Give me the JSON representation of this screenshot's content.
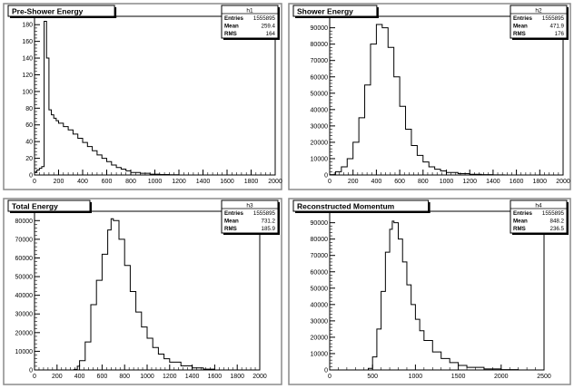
{
  "chart_data": [
    {
      "type": "bar",
      "title": "Pre-Shower Energy",
      "stats": {
        "name": "h1",
        "entries_label": "Entries",
        "entries": "1555895",
        "mean_label": "Mean",
        "mean": "259.4",
        "rms_label": "RMS",
        "rms": "164"
      },
      "y_multiplier_label": "×10",
      "xlim": [
        0,
        2000
      ],
      "ylim": [
        0,
        190
      ],
      "x_ticks": [
        0,
        200,
        400,
        600,
        800,
        1000,
        1200,
        1400,
        1600,
        1800,
        2000
      ],
      "y_ticks": [
        0,
        20,
        40,
        60,
        80,
        100,
        120,
        140,
        160,
        180
      ],
      "x": [
        0,
        20,
        40,
        60,
        80,
        100,
        120,
        140,
        160,
        180,
        200,
        240,
        280,
        320,
        360,
        400,
        440,
        480,
        520,
        560,
        600,
        640,
        680,
        720,
        760,
        800,
        880,
        960,
        1040,
        1120,
        1200
      ],
      "values": [
        3,
        6,
        8,
        10,
        184,
        140,
        78,
        72,
        68,
        65,
        62,
        58,
        54,
        49,
        44,
        39,
        34,
        29,
        24,
        20,
        16,
        12,
        9,
        7,
        5,
        3,
        2,
        1,
        0.6,
        0.3,
        0
      ],
      "grid": false
    },
    {
      "type": "bar",
      "title": "Shower Energy",
      "stats": {
        "name": "h2",
        "entries_label": "Entries",
        "entries": "1555895",
        "mean_label": "Mean",
        "mean": "471.9",
        "rms_label": "RMS",
        "rms": "176"
      },
      "xlim": [
        0,
        2000
      ],
      "ylim": [
        0,
        97000
      ],
      "x_ticks": [
        0,
        200,
        400,
        600,
        800,
        1000,
        1200,
        1400,
        1600,
        1800,
        2000
      ],
      "y_ticks": [
        0,
        10000,
        20000,
        30000,
        40000,
        50000,
        60000,
        70000,
        80000,
        90000
      ],
      "x": [
        0,
        50,
        100,
        150,
        200,
        250,
        300,
        350,
        400,
        425,
        450,
        500,
        550,
        600,
        650,
        700,
        750,
        800,
        850,
        900,
        950,
        1000,
        1100,
        1200,
        1300,
        1400,
        1500
      ],
      "values": [
        200,
        2000,
        5000,
        10000,
        20000,
        35000,
        55000,
        80000,
        92000,
        92000,
        90000,
        78000,
        60000,
        42000,
        28000,
        18000,
        12000,
        8000,
        5000,
        3500,
        2500,
        1500,
        800,
        400,
        200,
        100,
        0
      ],
      "grid": false
    },
    {
      "type": "bar",
      "title": "Total Energy",
      "stats": {
        "name": "h3",
        "entries_label": "Entries",
        "entries": "1555895",
        "mean_label": "Mean",
        "mean": "731.2",
        "rms_label": "RMS",
        "rms": "185.9"
      },
      "xlim": [
        0,
        2000
      ],
      "ylim": [
        0,
        85000
      ],
      "x_ticks": [
        0,
        200,
        400,
        600,
        800,
        1000,
        1200,
        1400,
        1600,
        1800,
        2000
      ],
      "y_ticks": [
        0,
        10000,
        20000,
        30000,
        40000,
        50000,
        60000,
        70000,
        80000
      ],
      "x": [
        300,
        350,
        380,
        400,
        450,
        500,
        550,
        600,
        650,
        680,
        700,
        750,
        800,
        850,
        900,
        950,
        1000,
        1050,
        1100,
        1150,
        1200,
        1300,
        1400,
        1500,
        1600
      ],
      "values": [
        0,
        300,
        2000,
        5000,
        15000,
        35000,
        48000,
        62000,
        75000,
        81000,
        80000,
        70000,
        56000,
        42000,
        31000,
        23000,
        17000,
        12000,
        8500,
        6000,
        4200,
        2200,
        1100,
        400,
        0
      ],
      "grid": false
    },
    {
      "type": "bar",
      "title": "Reconstructed Momentum",
      "stats": {
        "name": "h4",
        "entries_label": "Entries",
        "entries": "1555895",
        "mean_label": "Mean",
        "mean": "848.2",
        "rms_label": "RMS",
        "rms": "236.5"
      },
      "xlim": [
        0,
        2500
      ],
      "ylim": [
        0,
        97000
      ],
      "x_ticks": [
        0,
        500,
        1000,
        1500,
        2000,
        2500
      ],
      "y_ticks": [
        0,
        10000,
        20000,
        30000,
        40000,
        50000,
        60000,
        70000,
        80000,
        90000
      ],
      "x": [
        400,
        450,
        500,
        550,
        600,
        650,
        700,
        730,
        750,
        800,
        850,
        900,
        950,
        1000,
        1050,
        1100,
        1200,
        1300,
        1400,
        1500,
        1600,
        1800,
        2000,
        2200
      ],
      "values": [
        0,
        1000,
        8000,
        25000,
        48000,
        72000,
        86000,
        91000,
        90000,
        80000,
        66000,
        52000,
        40000,
        31000,
        24000,
        18000,
        11000,
        7000,
        4500,
        2800,
        1600,
        600,
        200,
        0
      ],
      "grid": false
    }
  ]
}
